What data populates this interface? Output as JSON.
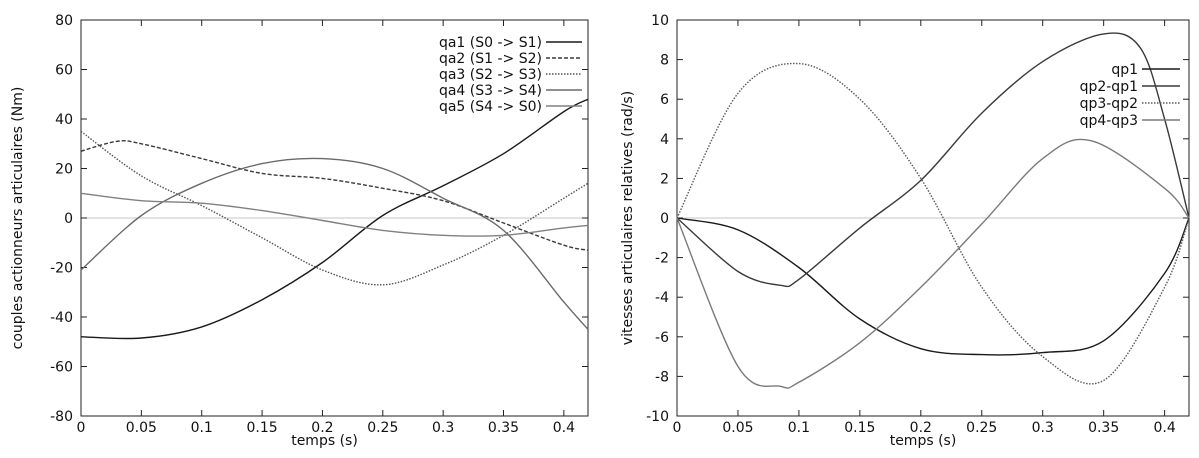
{
  "chart_data": [
    {
      "type": "line",
      "xlabel": "temps (s)",
      "ylabel": "couples actionneurs articulaires (Nm)",
      "xlim": [
        0,
        0.42
      ],
      "ylim": [
        -80,
        80
      ],
      "xticks": [
        0,
        0.05,
        0.1,
        0.15,
        0.2,
        0.25,
        0.3,
        0.35,
        0.4
      ],
      "xtick_labels": [
        "0",
        "0.05",
        "0.1",
        "0.15",
        "0.2",
        "0.25",
        "0.3",
        "0.35",
        "0.4"
      ],
      "yticks": [
        -80,
        -60,
        -40,
        -20,
        0,
        20,
        40,
        60,
        80
      ],
      "ytick_labels": [
        "-80",
        "-60",
        "-40",
        "-20",
        "0",
        "20",
        "40",
        "60",
        "80"
      ],
      "zero_line": true,
      "legend_position": "top-right",
      "series": [
        {
          "name": "qa1 (S0 -> S1)",
          "color": "#1a1a1a",
          "dash": "",
          "x": [
            0,
            0.05,
            0.1,
            0.15,
            0.2,
            0.25,
            0.3,
            0.35,
            0.4,
            0.42
          ],
          "y": [
            -48,
            -48.5,
            -44,
            -33,
            -18,
            1,
            13,
            26,
            43,
            48
          ]
        },
        {
          "name": "qa2 (S1 -> S2)",
          "color": "#3a3a3a",
          "dash": "4 2",
          "x": [
            0,
            0.03,
            0.05,
            0.1,
            0.15,
            0.2,
            0.25,
            0.3,
            0.35,
            0.4,
            0.42
          ],
          "y": [
            27,
            31,
            30,
            24,
            18,
            16,
            12,
            7,
            -2,
            -11,
            -13
          ]
        },
        {
          "name": "qa3 (S2 -> S3)",
          "color": "#555555",
          "dash": "1.5 1.5",
          "x": [
            0,
            0.05,
            0.1,
            0.15,
            0.2,
            0.25,
            0.3,
            0.35,
            0.4,
            0.42
          ],
          "y": [
            35,
            17,
            5,
            -8,
            -21,
            -27,
            -19,
            -7,
            8,
            14
          ]
        },
        {
          "name": "qa4 (S3 -> S4)",
          "color": "#6a6a6a",
          "dash": "",
          "x": [
            0,
            0.05,
            0.1,
            0.15,
            0.2,
            0.25,
            0.3,
            0.35,
            0.4,
            0.42
          ],
          "y": [
            -21,
            1,
            14,
            22,
            24,
            20,
            8,
            -5,
            -34,
            -45
          ]
        },
        {
          "name": "qa5 (S4 -> S0)",
          "color": "#808080",
          "dash": "",
          "x": [
            0,
            0.05,
            0.1,
            0.15,
            0.2,
            0.25,
            0.3,
            0.35,
            0.4,
            0.42
          ],
          "y": [
            10,
            7,
            6,
            3,
            -1,
            -5,
            -7,
            -7,
            -4,
            -3
          ]
        }
      ]
    },
    {
      "type": "line",
      "xlabel": "temps (s)",
      "ylabel": "vitesses articulaires relatives (rad/s)",
      "xlim": [
        0,
        0.42
      ],
      "ylim": [
        -10,
        10
      ],
      "xticks": [
        0,
        0.05,
        0.1,
        0.15,
        0.2,
        0.25,
        0.3,
        0.35,
        0.4
      ],
      "xtick_labels": [
        "0",
        "0.05",
        "0.1",
        "0.15",
        "0.2",
        "0.25",
        "0.3",
        "0.35",
        "0.4"
      ],
      "yticks": [
        -10,
        -8,
        -6,
        -4,
        -2,
        0,
        2,
        4,
        6,
        8,
        10
      ],
      "ytick_labels": [
        "-10",
        "-8",
        "-6",
        "-4",
        "-2",
        "0",
        "2",
        "4",
        "6",
        "8",
        "10"
      ],
      "zero_line": true,
      "legend_position": "top-right",
      "series": [
        {
          "name": "qp1",
          "color": "#1a1a1a",
          "dash": "",
          "x": [
            0,
            0.05,
            0.1,
            0.15,
            0.2,
            0.25,
            0.3,
            0.35,
            0.4,
            0.42
          ],
          "y": [
            0,
            -0.6,
            -2.5,
            -5.1,
            -6.6,
            -6.9,
            -6.8,
            -6.2,
            -2.8,
            0
          ]
        },
        {
          "name": "qp2-qp1",
          "color": "#3a3a3a",
          "dash": "",
          "x": [
            0,
            0.05,
            0.085,
            0.1,
            0.15,
            0.2,
            0.25,
            0.3,
            0.35,
            0.38,
            0.4,
            0.42
          ],
          "y": [
            0,
            -2.7,
            -3.4,
            -3.1,
            -0.5,
            1.9,
            5.3,
            7.9,
            9.3,
            8.6,
            5.0,
            0
          ]
        },
        {
          "name": "qp3-qp2",
          "color": "#5a5a5a",
          "dash": "1.5 1.5",
          "x": [
            0,
            0.05,
            0.1,
            0.15,
            0.2,
            0.25,
            0.3,
            0.35,
            0.4,
            0.42
          ],
          "y": [
            0,
            6.3,
            7.8,
            6.0,
            2.0,
            -3.5,
            -7.0,
            -8.2,
            -3.5,
            0
          ]
        },
        {
          "name": "qp4-qp3",
          "color": "#7a7a7a",
          "dash": "",
          "x": [
            0,
            0.05,
            0.085,
            0.1,
            0.15,
            0.2,
            0.25,
            0.3,
            0.34,
            0.4,
            0.42
          ],
          "y": [
            0,
            -7.5,
            -8.5,
            -8.3,
            -6.3,
            -3.5,
            -0.3,
            3.0,
            3.9,
            1.5,
            0
          ]
        }
      ]
    }
  ]
}
